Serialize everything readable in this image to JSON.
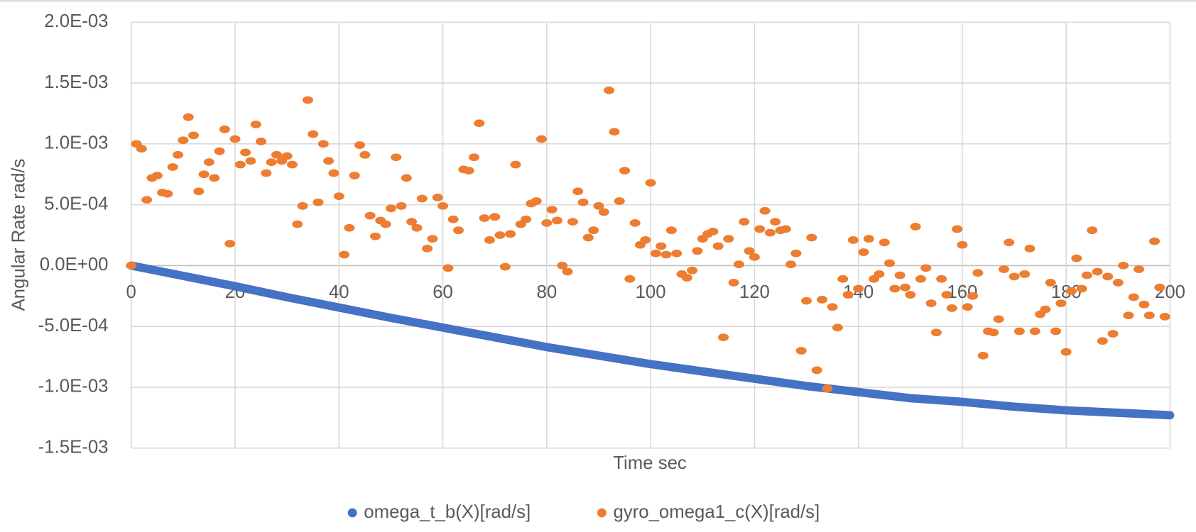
{
  "chart_data": {
    "type": "scatter",
    "xlabel": "Time sec",
    "ylabel": "Angular Rate rad/s",
    "xlim": [
      0,
      200
    ],
    "xticks": [
      0,
      20,
      40,
      60,
      80,
      100,
      120,
      140,
      160,
      180,
      200
    ],
    "ylim": [
      -0.0015,
      0.002
    ],
    "yticks": [
      {
        "value": -0.0015,
        "label": "-1.5E-03"
      },
      {
        "value": -0.001,
        "label": "-1.0E-03"
      },
      {
        "value": -0.0005,
        "label": "-5.0E-04"
      },
      {
        "value": 0,
        "label": "0.0E+00"
      },
      {
        "value": 0.0005,
        "label": "5.0E-04"
      },
      {
        "value": 0.001,
        "label": "1.0E-03"
      },
      {
        "value": 0.0015,
        "label": "1.5E-03"
      },
      {
        "value": 0.002,
        "label": "2.0E-03"
      }
    ],
    "grid": true,
    "legend": "bottom",
    "series": [
      {
        "name": "omega_t_b(X)[rad/s]",
        "color": "#4472c4",
        "x": [
          0,
          10,
          20,
          30,
          40,
          50,
          60,
          70,
          80,
          90,
          100,
          110,
          120,
          130,
          140,
          150,
          160,
          170,
          180,
          190,
          200
        ],
        "values": [
          0,
          -8.5e-05,
          -0.00017,
          -0.00026,
          -0.000345,
          -0.00043,
          -0.00051,
          -0.00059,
          -0.00067,
          -0.00074,
          -0.00081,
          -0.00087,
          -0.00093,
          -0.00099,
          -0.00104,
          -0.00109,
          -0.00112,
          -0.00116,
          -0.00119,
          -0.00121,
          -0.00123
        ]
      },
      {
        "name": "gyro_omega1_c(X)[rad/s]",
        "color": "#ed7d31",
        "x": [
          0,
          1,
          2,
          3,
          4,
          5,
          6,
          7,
          8,
          9,
          10,
          11,
          12,
          13,
          14,
          15,
          16,
          17,
          18,
          19,
          20,
          21,
          22,
          23,
          24,
          25,
          26,
          27,
          28,
          29,
          30,
          31,
          32,
          33,
          34,
          35,
          36,
          37,
          38,
          39,
          40,
          41,
          42,
          43,
          44,
          45,
          46,
          47,
          48,
          49,
          50,
          51,
          52,
          53,
          54,
          55,
          56,
          57,
          58,
          59,
          60,
          61,
          62,
          63,
          64,
          65,
          66,
          67,
          68,
          69,
          70,
          71,
          72,
          73,
          74,
          75,
          76,
          77,
          78,
          79,
          80,
          81,
          82,
          83,
          84,
          85,
          86,
          87,
          88,
          89,
          90,
          91,
          92,
          93,
          94,
          95,
          96,
          97,
          98,
          99,
          100,
          101,
          102,
          103,
          104,
          105,
          106,
          107,
          108,
          109,
          110,
          111,
          112,
          113,
          114,
          115,
          116,
          117,
          118,
          119,
          120,
          121,
          122,
          123,
          124,
          125,
          126,
          127,
          128,
          129,
          130,
          131,
          132,
          133,
          134,
          135,
          136,
          137,
          138,
          139,
          140,
          141,
          142,
          143,
          144,
          145,
          146,
          147,
          148,
          149,
          150,
          151,
          152,
          153,
          154,
          155,
          156,
          157,
          158,
          159,
          160,
          161,
          162,
          163,
          164,
          165,
          166,
          167,
          168,
          169,
          170,
          171,
          172,
          173,
          174,
          175,
          176,
          177,
          178,
          179,
          180,
          181,
          182,
          183,
          184,
          185,
          186,
          187,
          188,
          189,
          190,
          191,
          192,
          193,
          194,
          195,
          196,
          197,
          198,
          199
        ],
        "values": [
          0,
          0.001,
          0.00096,
          0.00054,
          0.00072,
          0.00074,
          0.0006,
          0.00059,
          0.00081,
          0.00091,
          0.00103,
          0.00122,
          0.00107,
          0.00061,
          0.00075,
          0.00085,
          0.00072,
          0.00094,
          0.00112,
          0.00018,
          0.00104,
          0.00083,
          0.00093,
          0.00086,
          0.00116,
          0.00102,
          0.00076,
          0.00085,
          0.00091,
          0.00086,
          0.0009,
          0.00083,
          0.00034,
          0.00049,
          0.00136,
          0.00108,
          0.00052,
          0.001,
          0.00086,
          0.00076,
          0.00057,
          9e-05,
          0.00031,
          0.00074,
          0.00099,
          0.00091,
          0.00041,
          0.00024,
          0.00037,
          0.00034,
          0.00047,
          0.00089,
          0.00049,
          0.00072,
          0.00036,
          0.00031,
          0.00055,
          0.00014,
          0.00022,
          0.00056,
          0.00049,
          -2e-05,
          0.00038,
          0.00029,
          0.00079,
          0.00078,
          0.00089,
          0.00117,
          0.00039,
          0.00021,
          0.0004,
          0.00025,
          -1e-05,
          0.00026,
          0.00083,
          0.00034,
          0.00038,
          0.00051,
          0.00053,
          0.00104,
          0.00035,
          0.00046,
          0.00037,
          0,
          -5e-05,
          0.00036,
          0.00061,
          0.00052,
          0.00023,
          0.00029,
          0.00049,
          0.00044,
          0.00144,
          0.0011,
          0.00053,
          0.00078,
          -0.00011,
          0.00035,
          0.00017,
          0.00021,
          0.00068,
          0.0001,
          0.00016,
          9e-05,
          0.00029,
          0.0001,
          -7e-05,
          -0.0001,
          -4e-05,
          0.00012,
          0.00022,
          0.00026,
          0.00028,
          0.00016,
          -0.00059,
          0.00022,
          -0.00014,
          1e-05,
          0.00036,
          0.00012,
          7e-05,
          0.0003,
          0.00045,
          0.00027,
          0.00036,
          0.00029,
          0.0003,
          1e-05,
          0.0001,
          -0.0007,
          -0.00029,
          0.00023,
          -0.00086,
          -0.00028,
          -0.00101,
          -0.00034,
          -0.00051,
          -0.00011,
          -0.00024,
          0.00021,
          -0.00019,
          0.00011,
          0.00022,
          -0.00011,
          -7e-05,
          0.00019,
          2e-05,
          -0.00019,
          -8e-05,
          -0.00018,
          -0.00024,
          0.00032,
          -0.00011,
          -2e-05,
          -0.00031,
          -0.00055,
          -0.00011,
          -0.00024,
          -0.00035,
          0.0003,
          0.00017,
          -0.00034,
          -0.00025,
          -6e-05,
          -0.00074,
          -0.00054,
          -0.00055,
          -0.00044,
          -3e-05,
          0.00019,
          -9e-05,
          -0.00054,
          -7e-05,
          0.00014,
          -0.00054,
          -0.0004,
          -0.00036,
          -0.00014,
          -0.00054,
          -0.00031,
          -0.00071,
          -0.00021,
          6e-05,
          -0.00019,
          -8e-05,
          0.00029,
          -5e-05,
          -0.00062,
          -9e-05,
          -0.00056,
          -0.00014,
          0,
          -0.00041,
          -0.00026,
          -3e-05,
          -0.00032,
          -0.00041,
          0.0002,
          -0.00018,
          -0.00042
        ]
      }
    ]
  }
}
